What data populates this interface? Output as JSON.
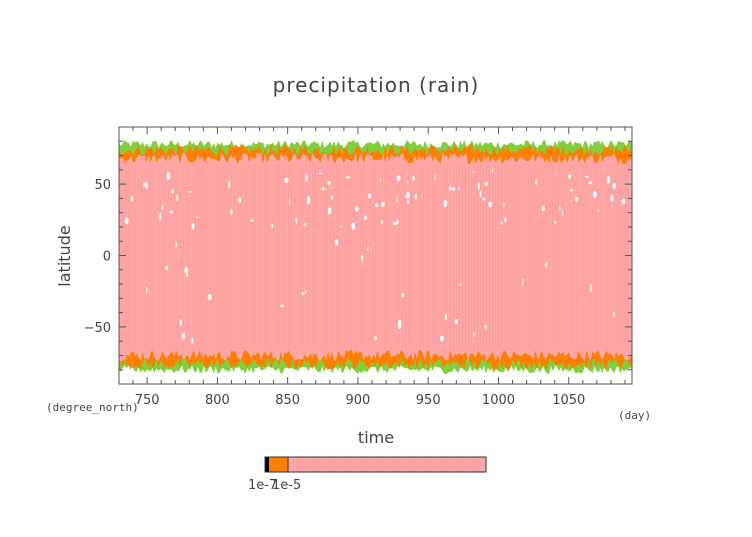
{
  "chart_data": {
    "type": "heatmap",
    "title": "precipitation (rain)",
    "xlabel": "time",
    "ylabel": "latitude",
    "x_unit": "(day)",
    "y_unit": "(degree_north)",
    "xlim": [
      730,
      1095
    ],
    "ylim": [
      -90,
      90
    ],
    "x_ticks": [
      750,
      800,
      850,
      900,
      950,
      1000,
      1050
    ],
    "y_ticks": [
      50,
      0,
      -50
    ],
    "y_tick_labels": [
      "50",
      "0",
      "−50"
    ],
    "band_edges_lat": {
      "north_green": 78,
      "north_orange": 74,
      "north_pink": 68,
      "south_pink": -70,
      "south_orange": -76,
      "south_green": -80
    },
    "colors": {
      "pink": "#ffa6a6",
      "orange": "#ff8000",
      "green": "#7fcf3f",
      "frame": "#555555"
    },
    "colorbar": {
      "levels_label": "1e-7",
      "levels_label_2": "1e-5",
      "segments": [
        "#000000",
        "#ff8000",
        "#ffa6a6"
      ]
    }
  }
}
